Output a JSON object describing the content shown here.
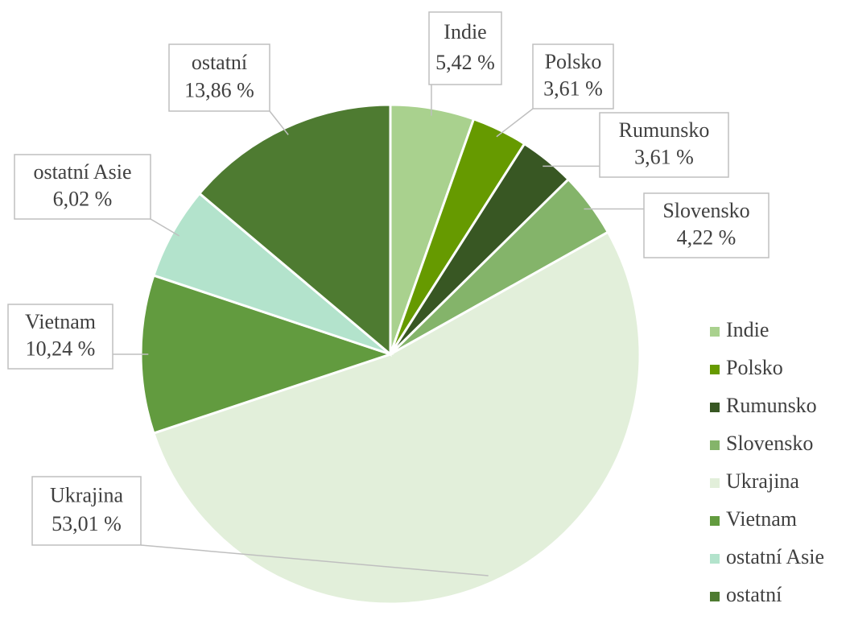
{
  "chart_data": {
    "type": "pie",
    "categories": [
      "Indie",
      "Polsko",
      "Rumunsko",
      "Slovensko",
      "Ukrajina",
      "Vietnam",
      "ostatní Asie",
      "ostatní"
    ],
    "values": [
      5.42,
      3.61,
      3.61,
      4.22,
      53.01,
      10.24,
      6.02,
      13.86
    ],
    "value_labels": [
      "5,42 %",
      "3,61 %",
      "3,61 %",
      "4,22 %",
      "53,01 %",
      "10,24 %",
      "6,02 %",
      "13,86 %"
    ],
    "colors": [
      "#a9d18e",
      "#669a00",
      "#385723",
      "#84b46a",
      "#e2efda",
      "#629b3f",
      "#b3e3cc",
      "#4e7b31"
    ],
    "legend": "right"
  }
}
